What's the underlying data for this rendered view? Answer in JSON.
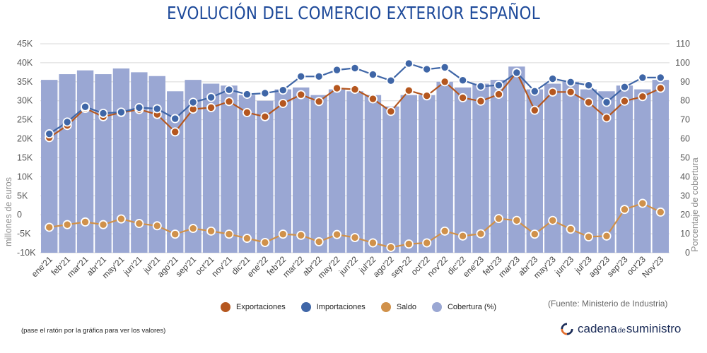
{
  "title": "EVOLUCIÓN DEL COMERCIO EXTERIOR ESPAÑOL",
  "source": "(Fuente: Ministerio de Industria)",
  "note": "(pase el ratón por la gráfica para ver los valores)",
  "brand": {
    "part1": "cadena",
    "part2": "de",
    "part3": "suministro"
  },
  "colors": {
    "exportaciones": "#b5571f",
    "importaciones": "#3f66a7",
    "saldo": "#d0914a",
    "cobertura": "#9aa7d3"
  },
  "chart_data": {
    "type": "bar+line",
    "categories": [
      "ene'21",
      "feb'21",
      "mar'21",
      "abr'21",
      "may'21",
      "jun'21",
      "jul'21",
      "ago'21",
      "sep'21",
      "oct'21",
      "nov'21",
      "dic'21",
      "ene'22",
      "feb'22",
      "mar'22",
      "abr'22",
      "may'22",
      "jun'22",
      "jul'22",
      "ago'22",
      "sep-22",
      "oct'22",
      "nov'22",
      "dic'22",
      "ene'23",
      "feb'23",
      "mar'23",
      "abr'23",
      "may'23",
      "jun'23",
      "jul'23",
      "ago'23",
      "sep'23",
      "oct'23",
      "Nov'23"
    ],
    "ylabel_left": "millones de euros",
    "ylabel_right": "Porcentaje de cobertura",
    "ylim_left": [
      -10000,
      45000
    ],
    "ylim_right": [
      0,
      110
    ],
    "yticks_left": [
      "45K",
      "40K",
      "35K",
      "30K",
      "25K",
      "20K",
      "15K",
      "10K",
      "5K",
      "0",
      "-5K",
      "-10K"
    ],
    "yticks_right": [
      "110",
      "100",
      "90",
      "80",
      "70",
      "60",
      "50",
      "40",
      "30",
      "20",
      "10",
      "0"
    ],
    "series": [
      {
        "name": "Exportaciones",
        "type": "line",
        "axis": "left",
        "values": [
          20300,
          23500,
          28000,
          25800,
          26900,
          27700,
          26400,
          21800,
          27800,
          28200,
          29800,
          26900,
          25800,
          29300,
          31600,
          29800,
          33300,
          33000,
          30500,
          27200,
          32700,
          31300,
          35000,
          30800,
          29900,
          31700,
          37500,
          27500,
          32300,
          32300,
          29600,
          25500,
          29900,
          31100,
          33300
        ]
      },
      {
        "name": "Importaciones",
        "type": "line",
        "axis": "left",
        "values": [
          21300,
          24400,
          28400,
          26700,
          27000,
          28200,
          27900,
          25300,
          29600,
          30900,
          32900,
          31700,
          32000,
          32800,
          36400,
          36400,
          38100,
          38600,
          36900,
          35300,
          39800,
          38300,
          38800,
          35400,
          33800,
          34100,
          37400,
          32500,
          35800,
          34900,
          34100,
          29600,
          33600,
          36100,
          36100
        ]
      },
      {
        "name": "Saldo",
        "type": "line",
        "axis": "left",
        "values": [
          -3300,
          -2600,
          -1900,
          -2600,
          -1100,
          -2300,
          -2900,
          -5100,
          -3600,
          -4300,
          -5100,
          -6200,
          -7300,
          -5100,
          -5400,
          -7100,
          -5200,
          -6000,
          -7400,
          -8600,
          -7700,
          -7400,
          -4300,
          -5600,
          -5000,
          -1000,
          -1500,
          -5100,
          -1500,
          -3800,
          -5800,
          -5600,
          1400,
          3000,
          700
        ]
      },
      {
        "name": "Cobertura (%)",
        "type": "bar",
        "axis": "right",
        "values": [
          91,
          94,
          96,
          94,
          97,
          95,
          93,
          85,
          91,
          89,
          88,
          83,
          80,
          86,
          87,
          83,
          86,
          85,
          83,
          77,
          83,
          83,
          90,
          87,
          89,
          91,
          98,
          86,
          89,
          90,
          86,
          85,
          88,
          86,
          91
        ]
      }
    ],
    "legend_position": "bottom",
    "grid": true
  }
}
